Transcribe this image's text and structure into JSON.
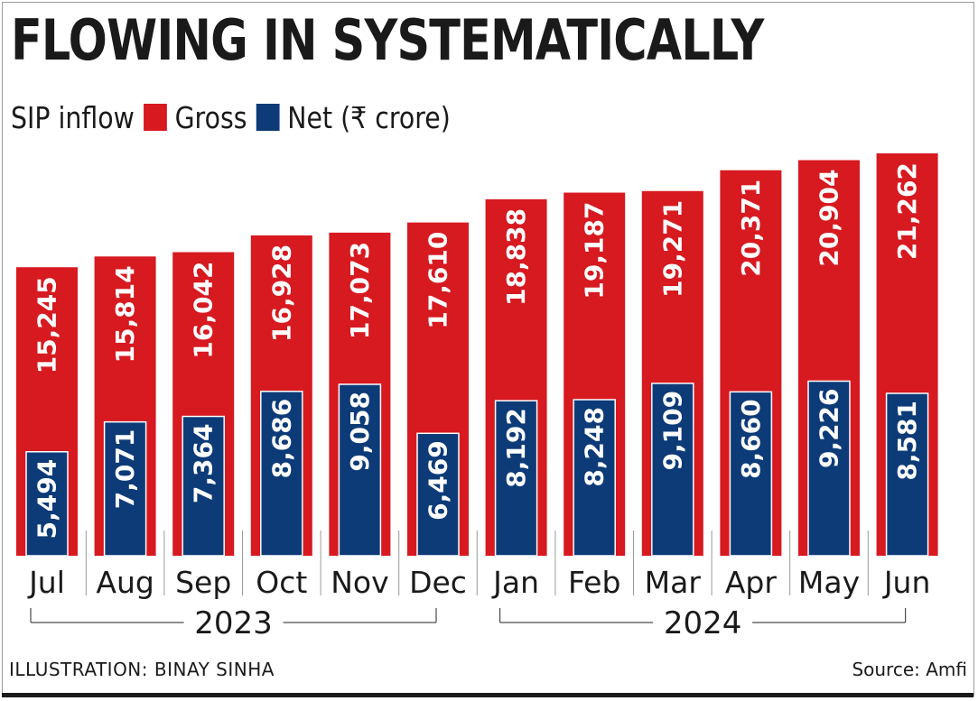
{
  "title": "FLOWING IN SYSTEMATICALLY",
  "legend": {
    "label": "SIP inflow",
    "gross": "Gross",
    "net": "Net (₹ crore)"
  },
  "colors": {
    "gross": "#d71920",
    "net": "#0d3b78"
  },
  "chart_data": {
    "type": "bar",
    "categories": [
      "Jul",
      "Aug",
      "Sep",
      "Oct",
      "Nov",
      "Dec",
      "Jan",
      "Feb",
      "Mar",
      "Apr",
      "May",
      "Jun"
    ],
    "series": [
      {
        "name": "Gross",
        "values": [
          15245,
          15814,
          16042,
          16928,
          17073,
          17610,
          18838,
          19187,
          19271,
          20371,
          20904,
          21262
        ]
      },
      {
        "name": "Net",
        "values": [
          5494,
          7071,
          7364,
          8686,
          9058,
          6469,
          8192,
          8248,
          9109,
          8660,
          9226,
          8581
        ]
      }
    ],
    "value_labels": {
      "gross": [
        "15,245",
        "15,814",
        "16,042",
        "16,928",
        "17,073",
        "17,610",
        "18,838",
        "19,187",
        "19,271",
        "20,371",
        "20,904",
        "21,262"
      ],
      "net": [
        "5,494",
        "7,071",
        "7,364",
        "8,686",
        "9,058",
        "6,469",
        "8,192",
        "8,248",
        "9,109",
        "8,660",
        "9,226",
        "8,581"
      ]
    },
    "year_groups": [
      {
        "label": "2023",
        "from": 0,
        "to": 5
      },
      {
        "label": "2024",
        "from": 6,
        "to": 11
      }
    ],
    "ylim": [
      0,
      21262
    ]
  },
  "footer": {
    "credit": "ILLUSTRATION: BINAY SINHA",
    "source": "Source: Amfi"
  }
}
